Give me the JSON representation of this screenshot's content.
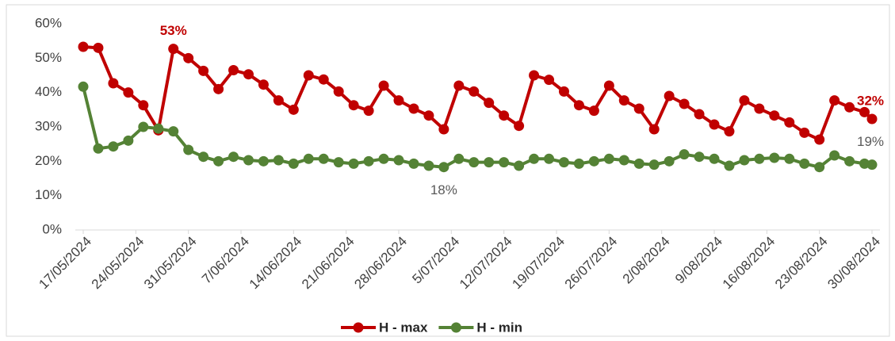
{
  "chart_data": {
    "type": "line",
    "x": [
      "17/05/2024",
      "19/05/2024",
      "21/05/2024",
      "23/05/2024",
      "25/05/2024",
      "27/05/2024",
      "29/05/2024",
      "31/05/2024",
      "2/06/2024",
      "4/06/2024",
      "6/06/2024",
      "8/06/2024",
      "10/06/2024",
      "12/06/2024",
      "14/06/2024",
      "16/06/2024",
      "18/06/2024",
      "20/06/2024",
      "22/06/2024",
      "24/06/2024",
      "26/06/2024",
      "28/06/2024",
      "30/06/2024",
      "2/07/2024",
      "4/07/2024",
      "6/07/2024",
      "8/07/2024",
      "10/07/2024",
      "12/07/2024",
      "14/07/2024",
      "16/07/2024",
      "18/07/2024",
      "20/07/2024",
      "22/07/2024",
      "24/07/2024",
      "26/07/2024",
      "28/07/2024",
      "30/07/2024",
      "1/08/2024",
      "3/08/2024",
      "5/08/2024",
      "7/08/2024",
      "9/08/2024",
      "11/08/2024",
      "13/08/2024",
      "15/08/2024",
      "17/08/2024",
      "19/08/2024",
      "21/08/2024",
      "23/08/2024",
      "25/08/2024",
      "27/08/2024",
      "29/08/2024",
      "30/08/2024"
    ],
    "xlim": [
      "17/05/2024",
      "30/08/2024"
    ],
    "xticks": [
      "17/05/2024",
      "24/05/2024",
      "31/05/2024",
      "7/06/2024",
      "14/06/2024",
      "21/06/2024",
      "28/06/2024",
      "5/07/2024",
      "12/07/2024",
      "19/07/2024",
      "26/07/2024",
      "2/08/2024",
      "9/08/2024",
      "16/08/2024",
      "23/08/2024",
      "30/08/2024"
    ],
    "ylim": [
      0,
      60
    ],
    "yticks": [
      {
        "value": 0,
        "label": "0%"
      },
      {
        "value": 10,
        "label": "10%"
      },
      {
        "value": 20,
        "label": "20%"
      },
      {
        "value": 30,
        "label": "30%"
      },
      {
        "value": 40,
        "label": "40%"
      },
      {
        "value": 50,
        "label": "50%"
      },
      {
        "value": 60,
        "label": "60%"
      }
    ],
    "grid": false,
    "legend": "bottom",
    "series": [
      {
        "name": "H - max",
        "color": "#c00000",
        "values": [
          53.3,
          53,
          42.7,
          40,
          36.3,
          29,
          52.7,
          50,
          46.3,
          41,
          46.5,
          45.3,
          42.3,
          37.7,
          35,
          45,
          43.8,
          40.3,
          36.3,
          34.7,
          42,
          37.7,
          35.3,
          33.3,
          29.3,
          42,
          40.3,
          37,
          33.3,
          30.3,
          45,
          43.7,
          40.3,
          36.3,
          34.7,
          42,
          37.7,
          35.3,
          29.3,
          39,
          36.7,
          33.7,
          30.7,
          28.7,
          37.7,
          35.3,
          33.3,
          31.3,
          28.3,
          26.3,
          37.7,
          35.7,
          34.3,
          32.3
        ],
        "value_labels": [
          null,
          null,
          null,
          null,
          null,
          null,
          "53%",
          null,
          null,
          null,
          null,
          null,
          null,
          null,
          null,
          null,
          null,
          null,
          null,
          null,
          null,
          null,
          null,
          null,
          null,
          null,
          null,
          null,
          null,
          null,
          null,
          null,
          null,
          null,
          null,
          null,
          null,
          null,
          null,
          null,
          null,
          null,
          null,
          null,
          null,
          null,
          null,
          null,
          null,
          null,
          null,
          null,
          null,
          "32%"
        ]
      },
      {
        "name": "H - min",
        "color": "#548235",
        "values": [
          41.7,
          23.7,
          24.3,
          26,
          30,
          29.5,
          28.7,
          23.3,
          21.3,
          20,
          21.3,
          20.3,
          20,
          20.3,
          19.3,
          20.7,
          20.7,
          19.7,
          19.3,
          20,
          20.7,
          20.3,
          19.3,
          18.7,
          18.3,
          20.7,
          19.7,
          19.7,
          19.7,
          18.7,
          20.7,
          20.7,
          19.7,
          19.3,
          20,
          20.7,
          20.3,
          19.3,
          19,
          20,
          22,
          21.3,
          20.7,
          18.7,
          20.3,
          20.7,
          21,
          20.7,
          19.3,
          18.3,
          21.7,
          20,
          19.3,
          19
        ],
        "value_labels": [
          null,
          null,
          null,
          null,
          null,
          null,
          null,
          null,
          null,
          null,
          null,
          null,
          null,
          null,
          null,
          null,
          null,
          null,
          null,
          null,
          null,
          null,
          null,
          null,
          "18%",
          null,
          null,
          null,
          null,
          null,
          null,
          null,
          null,
          null,
          null,
          null,
          null,
          null,
          null,
          null,
          null,
          null,
          null,
          null,
          null,
          null,
          null,
          null,
          null,
          null,
          null,
          null,
          null,
          "19%"
        ]
      }
    ]
  }
}
